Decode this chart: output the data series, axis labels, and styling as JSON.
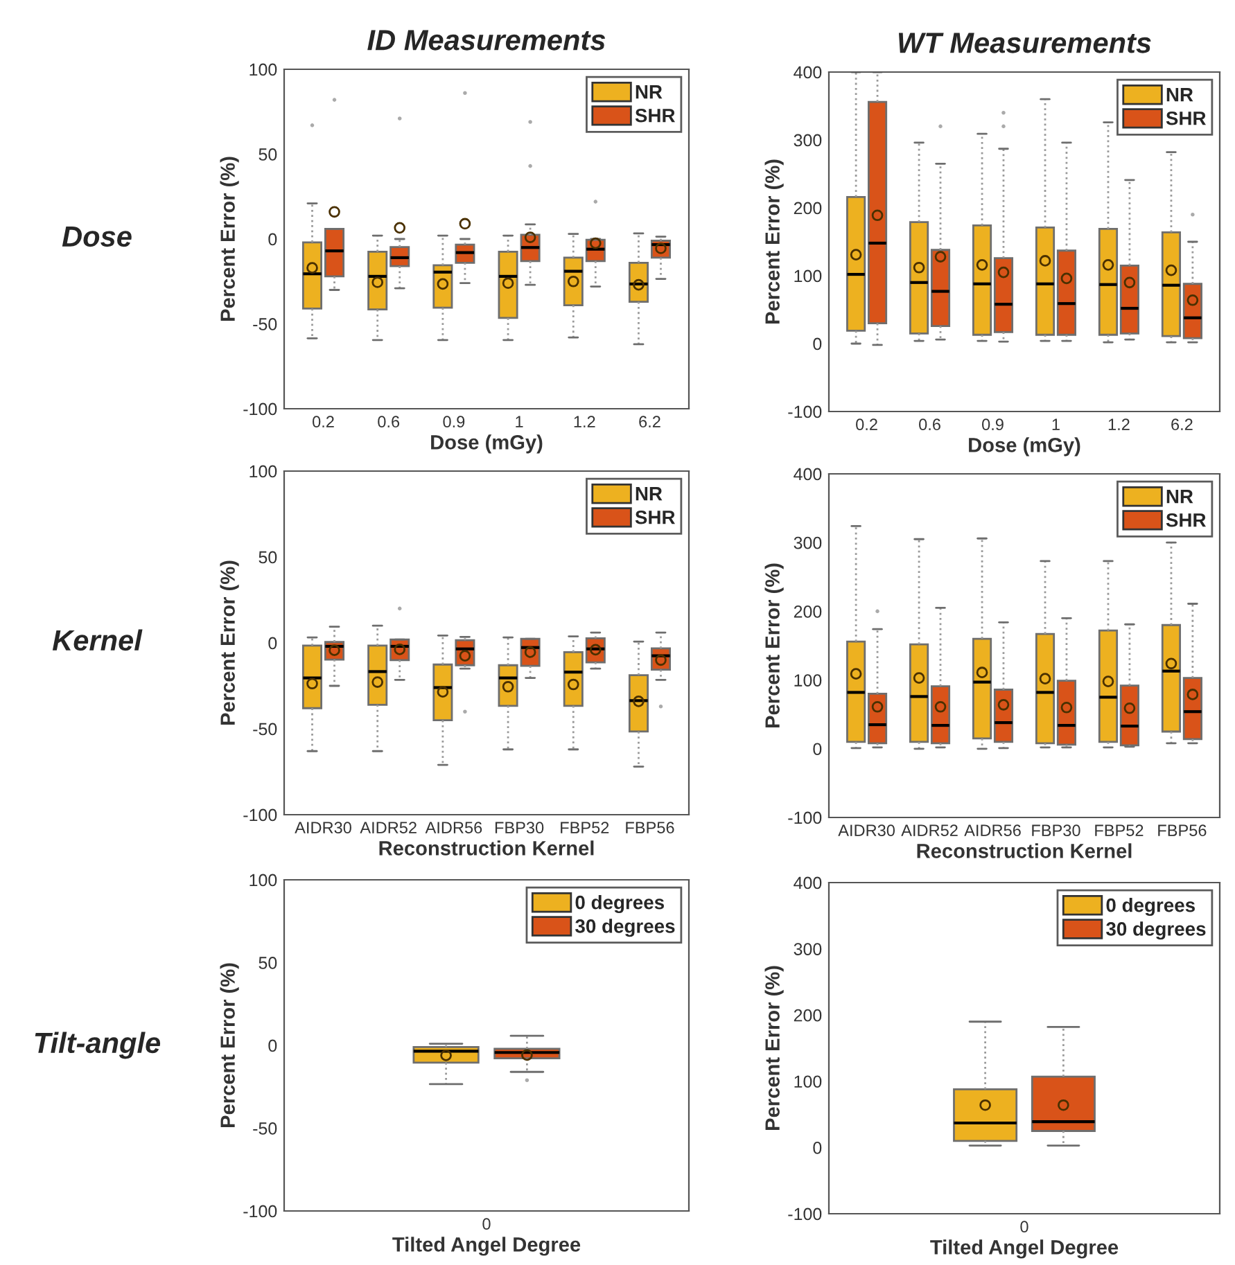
{
  "chart_data": [
    {
      "type": "box",
      "title": "ID Measurements",
      "annotations": [
        "Dose"
      ],
      "xlabel": "Dose (mGy)",
      "ylabel": "Percent Error (%)",
      "categories": [
        "0.2",
        "0.6",
        "0.9",
        "1",
        "1.2",
        "6.2"
      ],
      "ylim": [
        -100,
        100
      ],
      "yticks": [
        -100,
        -50,
        0,
        50,
        100
      ],
      "legend": "top right",
      "marker": "circle",
      "series": [
        {
          "name": "NR",
          "color": "#edb120",
          "boxes": [
            {
              "low": -58.5,
              "q1": -41,
              "median": -20.5,
              "q3": -2,
              "high": 21,
              "mean": -17,
              "outliers": [
                67
              ]
            },
            {
              "low": -59.5,
              "q1": -41.5,
              "median": -22,
              "q3": -7.5,
              "high": 2,
              "mean": -25.5
            },
            {
              "low": -59.5,
              "q1": -40.5,
              "median": -19.5,
              "q3": -15.5,
              "high": 2,
              "mean": -26.5
            },
            {
              "low": -59.5,
              "q1": -46.5,
              "median": -22,
              "q3": -7.5,
              "high": 2,
              "mean": -26
            },
            {
              "low": -58,
              "q1": -39,
              "median": -19,
              "q3": -11,
              "high": 3,
              "mean": -25
            },
            {
              "low": -62,
              "q1": -37,
              "median": -26.5,
              "q3": -14,
              "high": 3.3,
              "mean": -27
            }
          ]
        },
        {
          "name": "SHR",
          "color": "#d95319",
          "boxes": [
            {
              "low": -30,
              "q1": -22,
              "median": -7,
              "q3": 6,
              "high": 6,
              "mean": 16,
              "outliers": [
                82
              ]
            },
            {
              "low": -29,
              "q1": -16,
              "median": -11,
              "q3": -4.7,
              "high": 0,
              "mean": 6.6,
              "outliers": [
                71
              ]
            },
            {
              "low": -26,
              "q1": -14,
              "median": -8,
              "q3": -3.3,
              "high": 0,
              "mean": 9,
              "outliers": [
                86
              ]
            },
            {
              "low": -27,
              "q1": -13,
              "median": -5,
              "q3": 2.5,
              "high": 8.6,
              "mean": 1,
              "outliers": [
                43,
                69
              ]
            },
            {
              "low": -28,
              "q1": -13,
              "median": -6,
              "q3": -0.5,
              "high": 0,
              "mean": -2.5,
              "outliers": [
                22
              ]
            },
            {
              "low": -23.5,
              "q1": -11,
              "median": -3.3,
              "q3": -1,
              "high": 1.4,
              "mean": -5.5
            }
          ]
        }
      ]
    },
    {
      "type": "box",
      "title": "WT Measurements",
      "xlabel": "Dose (mGy)",
      "ylabel": "Percent Error (%)",
      "categories": [
        "0.2",
        "0.6",
        "0.9",
        "1",
        "1.2",
        "6.2"
      ],
      "ylim": [
        -100,
        400
      ],
      "yticks": [
        -100,
        0,
        100,
        200,
        300,
        400
      ],
      "legend": "top right",
      "marker": "circle",
      "series": [
        {
          "name": "NR",
          "color": "#edb120",
          "boxes": [
            {
              "low": 0,
              "q1": 19,
              "median": 102,
              "q3": 216,
              "high": 400,
              "mean": 131
            },
            {
              "low": 4,
              "q1": 15,
              "median": 90,
              "q3": 179,
              "high": 296,
              "mean": 112
            },
            {
              "low": 4,
              "q1": 13,
              "median": 88,
              "q3": 174,
              "high": 309,
              "mean": 116
            },
            {
              "low": 4,
              "q1": 13,
              "median": 88,
              "q3": 171,
              "high": 360,
              "mean": 122
            },
            {
              "low": 2,
              "q1": 13,
              "median": 87,
              "q3": 169,
              "high": 326,
              "mean": 116
            },
            {
              "low": 2,
              "q1": 11,
              "median": 86,
              "q3": 164,
              "high": 282,
              "mean": 108
            }
          ]
        },
        {
          "name": "SHR",
          "color": "#d95319",
          "boxes": [
            {
              "low": -2,
              "q1": 30,
              "median": 148,
              "q3": 356,
              "high": 400,
              "mean": 189
            },
            {
              "low": 6,
              "q1": 26,
              "median": 77,
              "q3": 138,
              "high": 265,
              "mean": 128,
              "outliers": [
                320
              ]
            },
            {
              "low": 3,
              "q1": 17,
              "median": 58,
              "q3": 126,
              "high": 287,
              "mean": 105,
              "outliers": [
                320,
                340
              ]
            },
            {
              "low": 4,
              "q1": 13,
              "median": 59,
              "q3": 137,
              "high": 296,
              "mean": 96
            },
            {
              "low": 6,
              "q1": 15,
              "median": 52,
              "q3": 115,
              "high": 241,
              "mean": 90
            },
            {
              "low": 2,
              "q1": 8,
              "median": 38,
              "q3": 88,
              "high": 150,
              "mean": 64,
              "outliers": [
                190
              ]
            }
          ]
        }
      ]
    },
    {
      "type": "box",
      "annotations": [
        "Kernel"
      ],
      "xlabel": "Reconstruction Kernel",
      "ylabel": "Percent Error (%)",
      "categories": [
        "AIDR30",
        "AIDR52",
        "AIDR56",
        "FBP30",
        "FBP52",
        "FBP56"
      ],
      "ylim": [
        -100,
        100
      ],
      "yticks": [
        -100,
        -50,
        0,
        50,
        100
      ],
      "legend": "top right",
      "marker": "circle",
      "series": [
        {
          "name": "NR",
          "color": "#edb120",
          "boxes": [
            {
              "low": -63,
              "q1": -38,
              "median": -20.4,
              "q3": -1.6,
              "high": 3.2,
              "mean": -23.7
            },
            {
              "low": -63,
              "q1": -36,
              "median": -16.7,
              "q3": -1.6,
              "high": 10,
              "mean": -22.8
            },
            {
              "low": -71,
              "q1": -45,
              "median": -26,
              "q3": -12.6,
              "high": 4.3,
              "mean": -28.5
            },
            {
              "low": -62,
              "q1": -36.6,
              "median": -20.4,
              "q3": -13,
              "high": 3.2,
              "mean": -25.5
            },
            {
              "low": -62,
              "q1": -36.6,
              "median": -17,
              "q3": -5.4,
              "high": 3.8,
              "mean": -24.2
            },
            {
              "low": -72,
              "q1": -51.6,
              "median": -33.6,
              "q3": -18.8,
              "high": 0.8,
              "mean": -34
            }
          ]
        },
        {
          "name": "SHR",
          "color": "#d95319",
          "boxes": [
            {
              "low": -25,
              "q1": -9.7,
              "median": -2,
              "q3": 0.5,
              "high": 9.4,
              "mean": -4.3
            },
            {
              "low": -21.5,
              "q1": -10,
              "median": -2,
              "q3": 2,
              "high": 2,
              "mean": -3.8,
              "outliers": [
                20
              ]
            },
            {
              "low": -15,
              "q1": -13,
              "median": -3.5,
              "q3": 1.6,
              "high": 3.5,
              "mean": -7.5,
              "outliers": [
                -40
              ]
            },
            {
              "low": -20.4,
              "q1": -13.4,
              "median": -2.7,
              "q3": 2.4,
              "high": 2.4,
              "mean": -5.4
            },
            {
              "low": -15,
              "q1": -11.3,
              "median": -3.5,
              "q3": 2.7,
              "high": 6,
              "mean": -4
            },
            {
              "low": -21.5,
              "q1": -15.6,
              "median": -7.5,
              "q3": -3.2,
              "high": 6,
              "mean": -10,
              "outliers": [
                -37
              ]
            }
          ]
        }
      ]
    },
    {
      "type": "box",
      "xlabel": "Reconstruction Kernel",
      "ylabel": "Percent Error (%)",
      "categories": [
        "AIDR30",
        "AIDR52",
        "AIDR56",
        "FBP30",
        "FBP52",
        "FBP56"
      ],
      "ylim": [
        -100,
        400
      ],
      "yticks": [
        -100,
        0,
        100,
        200,
        300,
        400
      ],
      "legend": "top right",
      "marker": "circle",
      "series": [
        {
          "name": "NR",
          "color": "#edb120",
          "boxes": [
            {
              "low": 1,
              "q1": 10,
              "median": 82,
              "q3": 156,
              "high": 324,
              "mean": 109
            },
            {
              "low": 0,
              "q1": 10,
              "median": 76,
              "q3": 152,
              "high": 305,
              "mean": 103
            },
            {
              "low": 0,
              "q1": 15,
              "median": 97,
              "q3": 160,
              "high": 306,
              "mean": 111
            },
            {
              "low": 2,
              "q1": 8,
              "median": 82,
              "q3": 167,
              "high": 273,
              "mean": 102
            },
            {
              "low": 2,
              "q1": 10,
              "median": 75,
              "q3": 172,
              "high": 273,
              "mean": 98
            },
            {
              "low": 8,
              "q1": 25,
              "median": 113,
              "q3": 180,
              "high": 300,
              "mean": 124
            }
          ]
        },
        {
          "name": "SHR",
          "color": "#d95319",
          "boxes": [
            {
              "low": 2,
              "q1": 8,
              "median": 35,
              "q3": 80,
              "high": 174,
              "mean": 61,
              "outliers": [
                200
              ]
            },
            {
              "low": 2,
              "q1": 8,
              "median": 34,
              "q3": 91,
              "high": 205,
              "mean": 61
            },
            {
              "low": 1,
              "q1": 10,
              "median": 38,
              "q3": 86,
              "high": 184,
              "mean": 64
            },
            {
              "low": 2,
              "q1": 6,
              "median": 34,
              "q3": 99,
              "high": 190,
              "mean": 60
            },
            {
              "low": 3,
              "q1": 5,
              "median": 33,
              "q3": 92,
              "high": 181,
              "mean": 59
            },
            {
              "low": 8,
              "q1": 14,
              "median": 54,
              "q3": 103,
              "high": 211,
              "mean": 79
            }
          ]
        }
      ]
    },
    {
      "type": "box",
      "annotations": [
        "Tilt-angle"
      ],
      "xlabel": "Tilted Angel Degree",
      "ylabel": "Percent Error (%)",
      "categories": [
        "0"
      ],
      "ylim": [
        -100,
        100
      ],
      "yticks": [
        -100,
        -50,
        0,
        50,
        100
      ],
      "legend": "top right",
      "marker": "circle",
      "series": [
        {
          "name": "0 degrees",
          "color": "#edb120",
          "boxes": [
            {
              "low": -23.4,
              "q1": -10.4,
              "median": -3.5,
              "q3": -1,
              "high": 1,
              "mean": -6
            }
          ]
        },
        {
          "name": "30 degrees",
          "color": "#d95319",
          "boxes": [
            {
              "low": -16,
              "q1": -7.8,
              "median": -4.3,
              "q3": -2,
              "high": 5.8,
              "mean": -5.8,
              "outliers": [
                -21
              ]
            }
          ]
        }
      ]
    },
    {
      "type": "box",
      "xlabel": "Tilted Angel Degree",
      "ylabel": "Percent Error (%)",
      "categories": [
        "0"
      ],
      "ylim": [
        -100,
        400
      ],
      "yticks": [
        -100,
        0,
        100,
        200,
        300,
        400
      ],
      "legend": "top right",
      "marker": "circle",
      "series": [
        {
          "name": "0 degrees",
          "color": "#edb120",
          "boxes": [
            {
              "low": 3,
              "q1": 10,
              "median": 37,
              "q3": 88,
              "high": 190,
              "mean": 64
            }
          ]
        },
        {
          "name": "30 degrees",
          "color": "#d95319",
          "boxes": [
            {
              "low": 3,
              "q1": 25,
              "median": 39,
              "q3": 107,
              "high": 182,
              "mean": 64
            }
          ]
        }
      ]
    }
  ]
}
